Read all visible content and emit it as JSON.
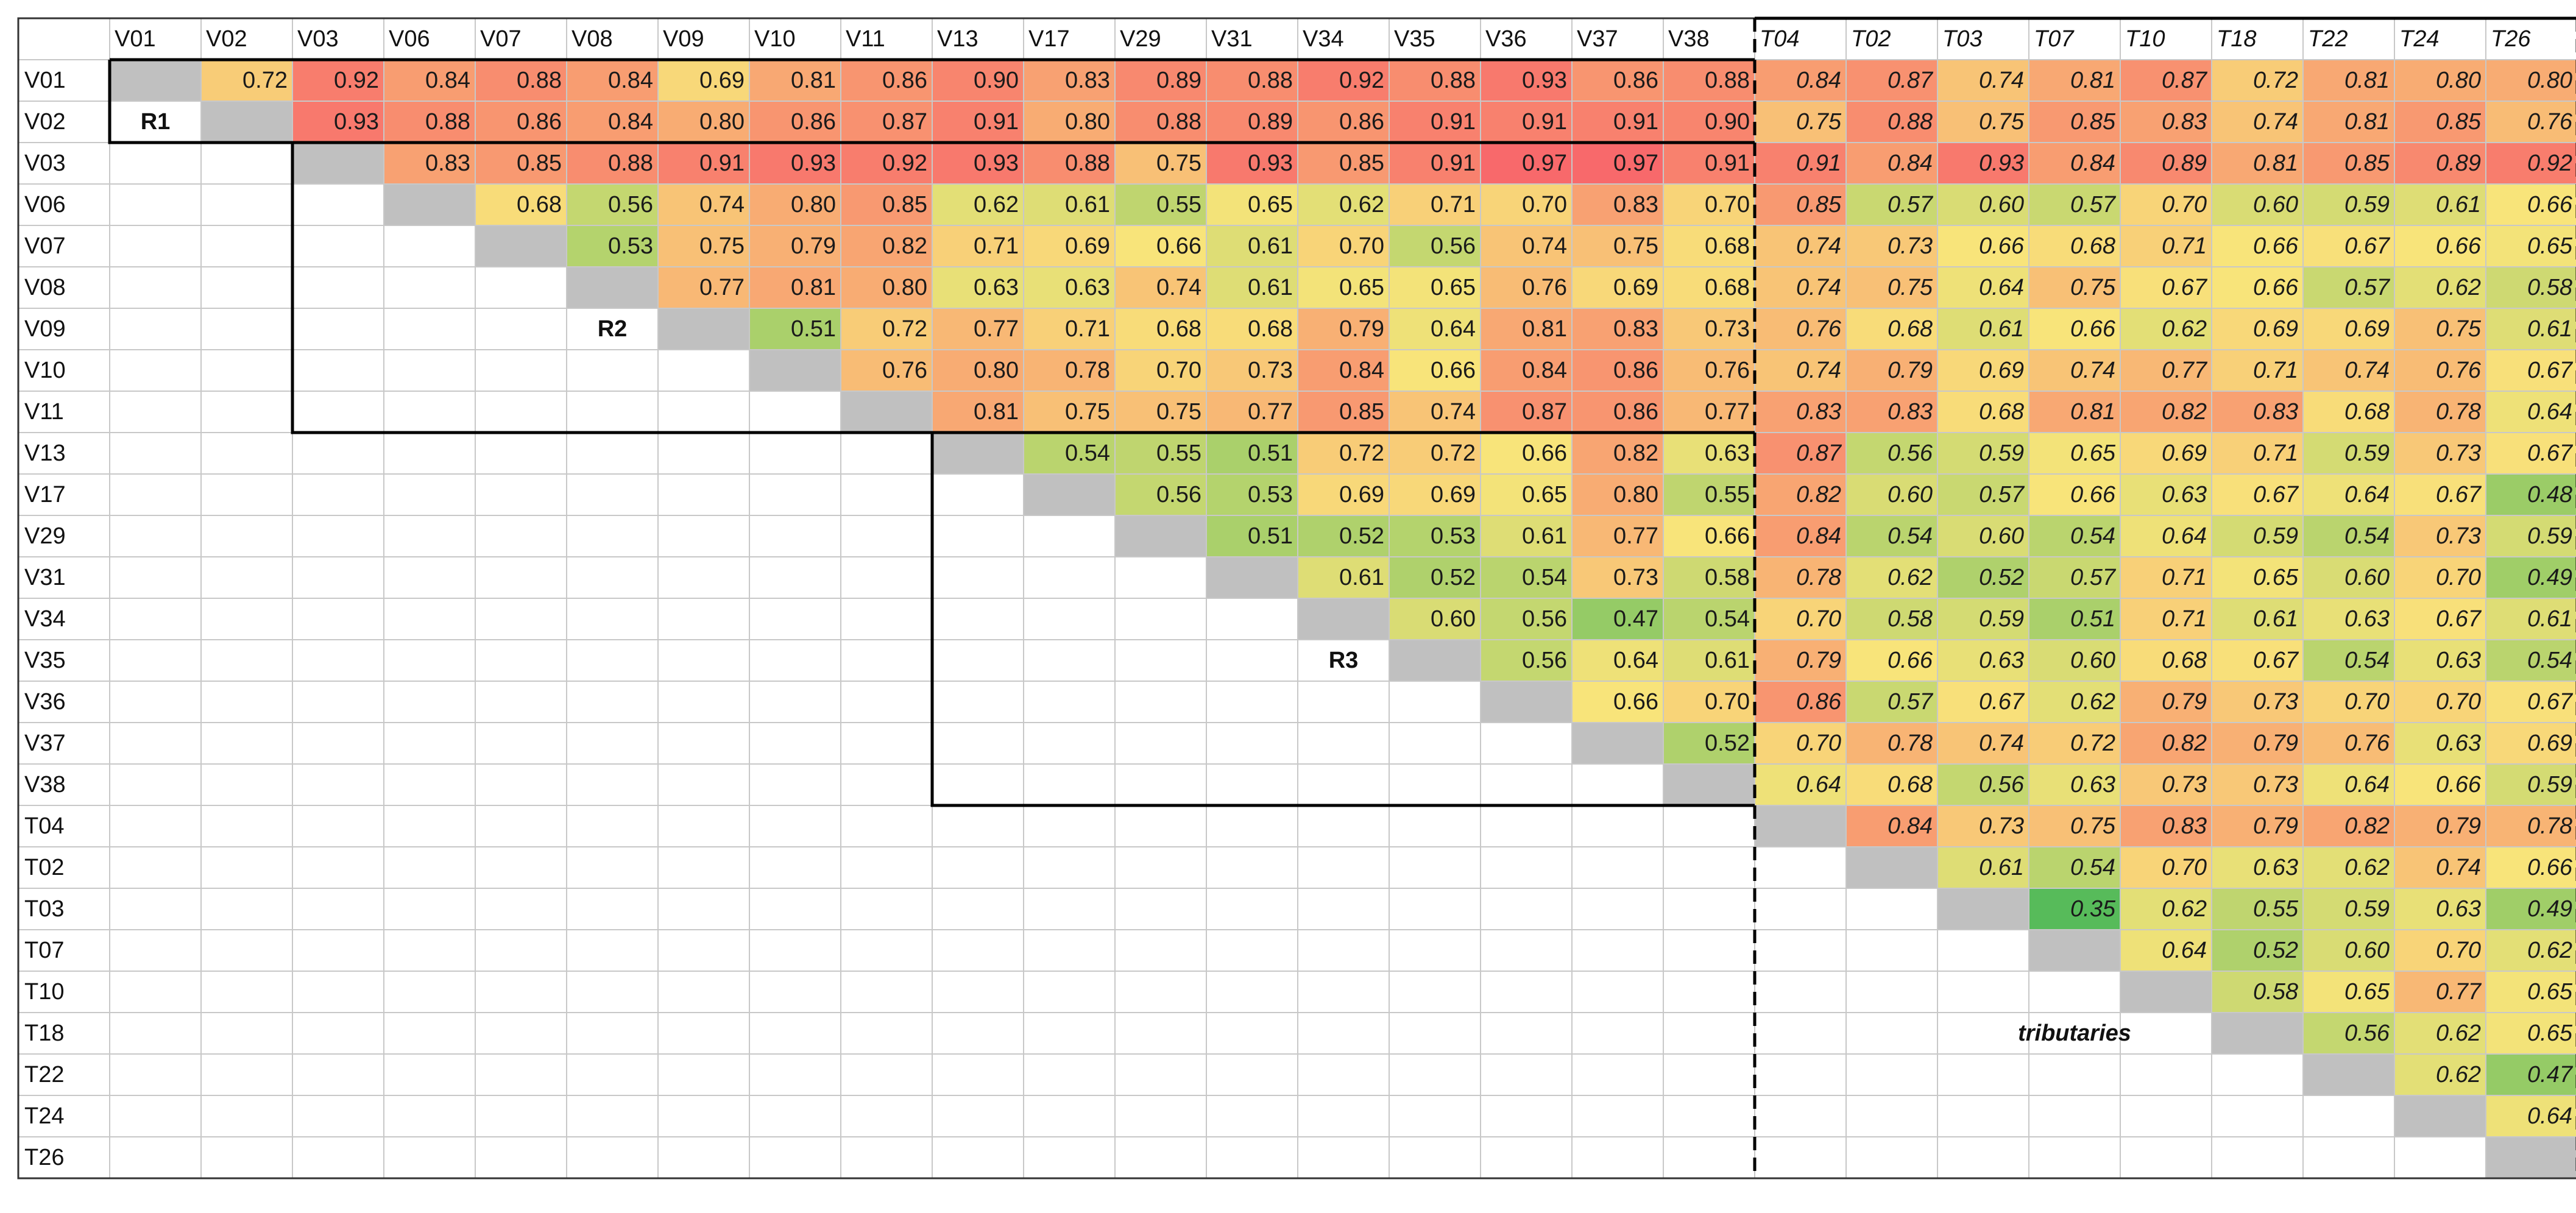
{
  "chart_data": {
    "type": "heatmap",
    "labels": [
      "V01",
      "V02",
      "V03",
      "V06",
      "V07",
      "V08",
      "V09",
      "V10",
      "V11",
      "V13",
      "V17",
      "V29",
      "V31",
      "V34",
      "V35",
      "V36",
      "V37",
      "V38",
      "T04",
      "T02",
      "T03",
      "T07",
      "T10",
      "T18",
      "T22",
      "T24",
      "T26"
    ],
    "rows": [
      [
        null,
        0.72,
        0.92,
        0.84,
        0.88,
        0.84,
        0.69,
        0.81,
        0.86,
        0.9,
        0.83,
        0.89,
        0.88,
        0.92,
        0.88,
        0.93,
        0.86,
        0.88,
        0.84,
        0.87,
        0.74,
        0.81,
        0.87,
        0.72,
        0.81,
        0.8,
        0.8
      ],
      [
        null,
        null,
        0.93,
        0.88,
        0.86,
        0.84,
        0.8,
        0.86,
        0.87,
        0.91,
        0.8,
        0.88,
        0.89,
        0.86,
        0.91,
        0.91,
        0.91,
        0.9,
        0.75,
        0.88,
        0.75,
        0.85,
        0.83,
        0.74,
        0.81,
        0.85,
        0.76
      ],
      [
        null,
        null,
        null,
        0.83,
        0.85,
        0.88,
        0.91,
        0.93,
        0.92,
        0.93,
        0.88,
        0.75,
        0.93,
        0.85,
        0.91,
        0.97,
        0.97,
        0.91,
        0.91,
        0.84,
        0.93,
        0.84,
        0.89,
        0.81,
        0.85,
        0.89,
        0.92
      ],
      [
        null,
        null,
        null,
        null,
        0.68,
        0.56,
        0.74,
        0.8,
        0.85,
        0.62,
        0.61,
        0.55,
        0.65,
        0.62,
        0.71,
        0.7,
        0.83,
        0.7,
        0.85,
        0.57,
        0.6,
        0.57,
        0.7,
        0.6,
        0.59,
        0.61,
        0.66
      ],
      [
        null,
        null,
        null,
        null,
        null,
        0.53,
        0.75,
        0.79,
        0.82,
        0.71,
        0.69,
        0.66,
        0.61,
        0.7,
        0.56,
        0.74,
        0.75,
        0.68,
        0.74,
        0.73,
        0.66,
        0.68,
        0.71,
        0.66,
        0.67,
        0.66,
        0.65
      ],
      [
        null,
        null,
        null,
        null,
        null,
        null,
        0.77,
        0.81,
        0.8,
        0.63,
        0.63,
        0.74,
        0.61,
        0.65,
        0.65,
        0.76,
        0.69,
        0.68,
        0.74,
        0.75,
        0.64,
        0.75,
        0.67,
        0.66,
        0.57,
        0.62,
        0.58
      ],
      [
        null,
        null,
        null,
        null,
        null,
        null,
        null,
        0.51,
        0.72,
        0.77,
        0.71,
        0.68,
        0.68,
        0.79,
        0.64,
        0.81,
        0.83,
        0.73,
        0.76,
        0.68,
        0.61,
        0.66,
        0.62,
        0.69,
        0.69,
        0.75,
        0.61
      ],
      [
        null,
        null,
        null,
        null,
        null,
        null,
        null,
        null,
        0.76,
        0.8,
        0.78,
        0.7,
        0.73,
        0.84,
        0.66,
        0.84,
        0.86,
        0.76,
        0.74,
        0.79,
        0.69,
        0.74,
        0.77,
        0.71,
        0.74,
        0.76,
        0.67
      ],
      [
        null,
        null,
        null,
        null,
        null,
        null,
        null,
        null,
        null,
        0.81,
        0.75,
        0.75,
        0.77,
        0.85,
        0.74,
        0.87,
        0.86,
        0.77,
        0.83,
        0.83,
        0.68,
        0.81,
        0.82,
        0.83,
        0.68,
        0.78,
        0.64
      ],
      [
        null,
        null,
        null,
        null,
        null,
        null,
        null,
        null,
        null,
        null,
        0.54,
        0.55,
        0.51,
        0.72,
        0.72,
        0.66,
        0.82,
        0.63,
        0.87,
        0.56,
        0.59,
        0.65,
        0.69,
        0.71,
        0.59,
        0.73,
        0.67
      ],
      [
        null,
        null,
        null,
        null,
        null,
        null,
        null,
        null,
        null,
        null,
        null,
        0.56,
        0.53,
        0.69,
        0.69,
        0.65,
        0.8,
        0.55,
        0.82,
        0.6,
        0.57,
        0.66,
        0.63,
        0.67,
        0.64,
        0.67,
        0.48
      ],
      [
        null,
        null,
        null,
        null,
        null,
        null,
        null,
        null,
        null,
        null,
        null,
        null,
        0.51,
        0.52,
        0.53,
        0.61,
        0.77,
        0.66,
        0.84,
        0.54,
        0.6,
        0.54,
        0.64,
        0.59,
        0.54,
        0.73,
        0.59
      ],
      [
        null,
        null,
        null,
        null,
        null,
        null,
        null,
        null,
        null,
        null,
        null,
        null,
        null,
        0.61,
        0.52,
        0.54,
        0.73,
        0.58,
        0.78,
        0.62,
        0.52,
        0.57,
        0.71,
        0.65,
        0.6,
        0.7,
        0.49
      ],
      [
        null,
        null,
        null,
        null,
        null,
        null,
        null,
        null,
        null,
        null,
        null,
        null,
        null,
        null,
        0.6,
        0.56,
        0.47,
        0.54,
        0.7,
        0.58,
        0.59,
        0.51,
        0.71,
        0.61,
        0.63,
        0.67,
        0.61
      ],
      [
        null,
        null,
        null,
        null,
        null,
        null,
        null,
        null,
        null,
        null,
        null,
        null,
        null,
        null,
        null,
        0.56,
        0.64,
        0.61,
        0.79,
        0.66,
        0.63,
        0.6,
        0.68,
        0.67,
        0.54,
        0.63,
        0.54
      ],
      [
        null,
        null,
        null,
        null,
        null,
        null,
        null,
        null,
        null,
        null,
        null,
        null,
        null,
        null,
        null,
        null,
        0.66,
        0.7,
        0.86,
        0.57,
        0.67,
        0.62,
        0.79,
        0.73,
        0.7,
        0.7,
        0.67
      ],
      [
        null,
        null,
        null,
        null,
        null,
        null,
        null,
        null,
        null,
        null,
        null,
        null,
        null,
        null,
        null,
        null,
        null,
        0.52,
        0.7,
        0.78,
        0.74,
        0.72,
        0.82,
        0.79,
        0.76,
        0.63,
        0.69
      ],
      [
        null,
        null,
        null,
        null,
        null,
        null,
        null,
        null,
        null,
        null,
        null,
        null,
        null,
        null,
        null,
        null,
        null,
        null,
        0.64,
        0.68,
        0.56,
        0.63,
        0.73,
        0.73,
        0.64,
        0.66,
        0.59
      ],
      [
        null,
        null,
        null,
        null,
        null,
        null,
        null,
        null,
        null,
        null,
        null,
        null,
        null,
        null,
        null,
        null,
        null,
        null,
        null,
        0.84,
        0.73,
        0.75,
        0.83,
        0.79,
        0.82,
        0.79,
        0.78
      ],
      [
        null,
        null,
        null,
        null,
        null,
        null,
        null,
        null,
        null,
        null,
        null,
        null,
        null,
        null,
        null,
        null,
        null,
        null,
        null,
        null,
        0.61,
        0.54,
        0.7,
        0.63,
        0.62,
        0.74,
        0.66
      ],
      [
        null,
        null,
        null,
        null,
        null,
        null,
        null,
        null,
        null,
        null,
        null,
        null,
        null,
        null,
        null,
        null,
        null,
        null,
        null,
        null,
        null,
        0.35,
        0.62,
        0.55,
        0.59,
        0.63,
        0.49
      ],
      [
        null,
        null,
        null,
        null,
        null,
        null,
        null,
        null,
        null,
        null,
        null,
        null,
        null,
        null,
        null,
        null,
        null,
        null,
        null,
        null,
        null,
        null,
        0.64,
        0.52,
        0.6,
        0.7,
        0.62
      ],
      [
        null,
        null,
        null,
        null,
        null,
        null,
        null,
        null,
        null,
        null,
        null,
        null,
        null,
        null,
        null,
        null,
        null,
        null,
        null,
        null,
        null,
        null,
        null,
        0.58,
        0.65,
        0.77,
        0.65
      ],
      [
        null,
        null,
        null,
        null,
        null,
        null,
        null,
        null,
        null,
        null,
        null,
        null,
        null,
        null,
        null,
        null,
        null,
        null,
        null,
        null,
        null,
        null,
        null,
        null,
        0.56,
        0.62,
        0.65
      ],
      [
        null,
        null,
        null,
        null,
        null,
        null,
        null,
        null,
        null,
        null,
        null,
        null,
        null,
        null,
        null,
        null,
        null,
        null,
        null,
        null,
        null,
        null,
        null,
        null,
        null,
        0.62,
        0.47
      ],
      [
        null,
        null,
        null,
        null,
        null,
        null,
        null,
        null,
        null,
        null,
        null,
        null,
        null,
        null,
        null,
        null,
        null,
        null,
        null,
        null,
        null,
        null,
        null,
        null,
        null,
        null,
        0.64
      ],
      [
        null,
        null,
        null,
        null,
        null,
        null,
        null,
        null,
        null,
        null,
        null,
        null,
        null,
        null,
        null,
        null,
        null,
        null,
        null,
        null,
        null,
        null,
        null,
        null,
        null,
        null,
        null
      ]
    ],
    "diagonal_color": "#c0c0c0",
    "colorscale": [
      {
        "v": 0.35,
        "color": "#57bb5a"
      },
      {
        "v": 0.66,
        "color": "#f8e47a"
      },
      {
        "v": 0.97,
        "color": "#f8696b"
      }
    ],
    "regions": [
      {
        "label": "R1",
        "from": 0,
        "to": 1
      },
      {
        "label": "R2",
        "from": 2,
        "to": 8
      },
      {
        "label": "R3",
        "from": 9,
        "to": 17
      }
    ],
    "tributaries_label": "tributaries",
    "tributary_start": 18
  }
}
